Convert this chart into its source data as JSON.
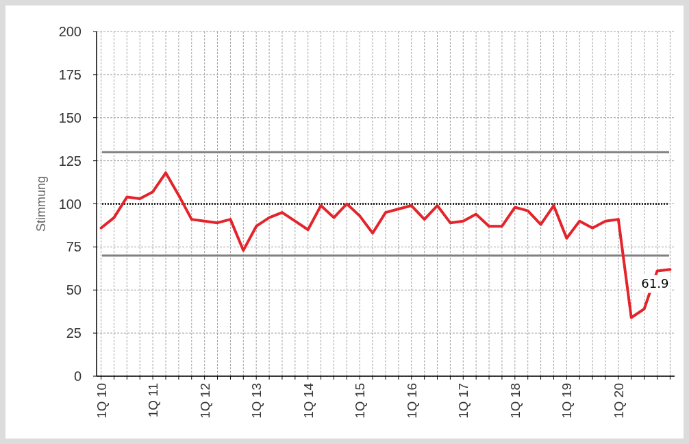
{
  "chart_data": {
    "type": "line",
    "ylabel": "Stimmung",
    "categories": [
      "1Q 10",
      null,
      null,
      null,
      "1Q 11",
      null,
      null,
      null,
      "1Q 12",
      null,
      null,
      null,
      "1Q 13",
      null,
      null,
      null,
      "1Q 14",
      null,
      null,
      null,
      "1Q 15",
      null,
      null,
      null,
      "1Q 16",
      null,
      null,
      null,
      "1Q 17",
      null,
      null,
      null,
      "1Q 18",
      null,
      null,
      null,
      "1Q 19",
      null,
      null,
      null,
      "1Q 20",
      null,
      null,
      null,
      null
    ],
    "series": [
      {
        "color": "#e3242b",
        "values": [
          86,
          92,
          104,
          103,
          107,
          118,
          105,
          91,
          90,
          89,
          91,
          73,
          87,
          92,
          95,
          90,
          85,
          99,
          92,
          100,
          93,
          83,
          95,
          97,
          99,
          91,
          99,
          89,
          90,
          94,
          87,
          87,
          98,
          96,
          88,
          99,
          80,
          90,
          86,
          90,
          91,
          34,
          39,
          61,
          61.9
        ],
        "value_labels": [
          null,
          null,
          null,
          null,
          null,
          null,
          null,
          null,
          null,
          null,
          null,
          null,
          null,
          null,
          null,
          null,
          null,
          null,
          null,
          null,
          null,
          null,
          null,
          null,
          null,
          null,
          null,
          null,
          null,
          null,
          null,
          null,
          null,
          null,
          null,
          null,
          null,
          null,
          null,
          null,
          null,
          null,
          null,
          null,
          "61.9"
        ]
      }
    ],
    "ylim": [
      0,
      200
    ],
    "yticks": [
      0,
      25,
      50,
      75,
      100,
      125,
      150,
      175,
      200
    ],
    "grid": true,
    "marker": "none",
    "line_style": "solid",
    "ref_lines": [
      {
        "axis": "y",
        "value": 130,
        "color": "#808080"
      },
      {
        "axis": "y",
        "value": 100,
        "color": "#333333",
        "line_style": "dotted"
      },
      {
        "axis": "y",
        "value": 70,
        "color": "#808080"
      }
    ]
  }
}
